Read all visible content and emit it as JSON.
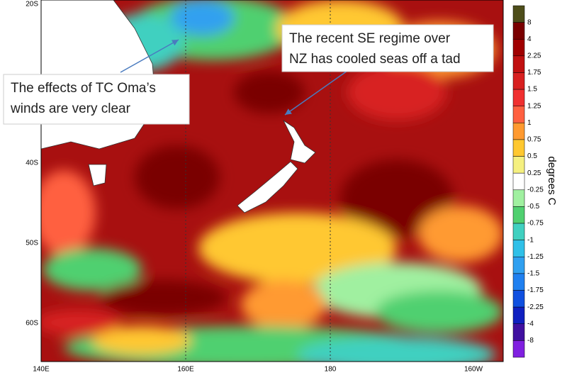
{
  "map": {
    "lat_labels": [
      "20S",
      "40S",
      "50S",
      "60S"
    ],
    "lon_labels": [
      "140E",
      "160E",
      "180",
      "160W"
    ],
    "colorbar": {
      "unit": "degrees  C",
      "labels": [
        "8",
        "4",
        "2.25",
        "1.75",
        "1.5",
        "1.25",
        "1",
        "0.75",
        "0.5",
        "0.25",
        "-0.25",
        "-0.5",
        "-0.75",
        "-1",
        "-1.25",
        "-1.5",
        "-1.75",
        "-2.25",
        "-4",
        "-8"
      ],
      "colors": [
        "#4d4d1a",
        "#7a0000",
        "#a00000",
        "#c01010",
        "#d82020",
        "#f03030",
        "#ff6040",
        "#ff9a30",
        "#ffc830",
        "#f5f080",
        "#ffffff",
        "#a0f0a0",
        "#50d070",
        "#40d0c0",
        "#30c0e8",
        "#30a0f0",
        "#2080f0",
        "#1050e0",
        "#1020c0",
        "#4010a0",
        "#8020e0"
      ]
    },
    "annotations": [
      {
        "lines": [
          "The effects of TC Oma’s",
          "winds are very clear"
        ]
      },
      {
        "lines": [
          "The recent SE regime over",
          "NZ has cooled seas off a tad"
        ]
      }
    ]
  }
}
